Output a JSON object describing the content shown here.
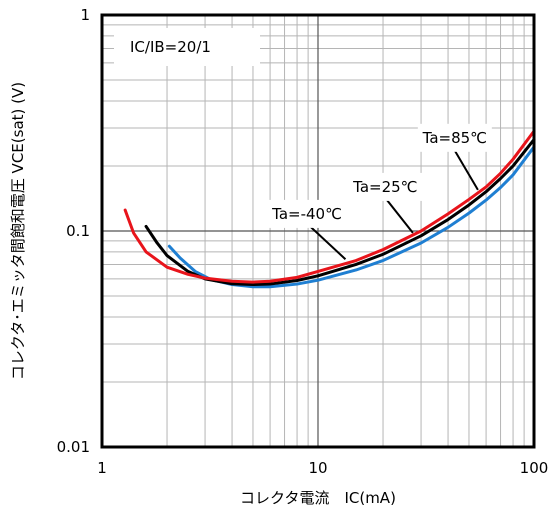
{
  "chart_data": {
    "type": "line",
    "xscale": "log",
    "yscale": "log",
    "xlim": [
      1,
      100
    ],
    "ylim": [
      0.01,
      1
    ],
    "x_ticks": [
      "1",
      "10",
      "100"
    ],
    "y_ticks": [
      "1",
      "0.1",
      "0.01"
    ],
    "xlabel": "コレクタ電流　IC(mA)",
    "ylabel": "コレクタ･エミッタ間飽和電圧 VCE(sat) (V)",
    "grid": true,
    "condition": "IC/IB=20/1",
    "series": [
      {
        "name": "Ta=85℃",
        "color": "#e8141b",
        "points": [
          [
            1.28,
            0.125
          ],
          [
            1.4,
            0.098
          ],
          [
            1.6,
            0.08
          ],
          [
            2.0,
            0.068
          ],
          [
            2.5,
            0.063
          ],
          [
            3.0,
            0.0605
          ],
          [
            4.0,
            0.0585
          ],
          [
            5.0,
            0.058
          ],
          [
            6.0,
            0.0585
          ],
          [
            8.0,
            0.061
          ],
          [
            10,
            0.065
          ],
          [
            15,
            0.073
          ],
          [
            20,
            0.082
          ],
          [
            30,
            0.1
          ],
          [
            40,
            0.12
          ],
          [
            50,
            0.14
          ],
          [
            60,
            0.16
          ],
          [
            70,
            0.185
          ],
          [
            80,
            0.215
          ],
          [
            100,
            0.29
          ]
        ]
      },
      {
        "name": "Ta=25℃",
        "color": "#000000",
        "points": [
          [
            1.6,
            0.105
          ],
          [
            1.8,
            0.088
          ],
          [
            2.0,
            0.077
          ],
          [
            2.5,
            0.065
          ],
          [
            3.0,
            0.06
          ],
          [
            4.0,
            0.057
          ],
          [
            5.0,
            0.0565
          ],
          [
            6.0,
            0.0568
          ],
          [
            8.0,
            0.059
          ],
          [
            10,
            0.062
          ],
          [
            15,
            0.07
          ],
          [
            20,
            0.078
          ],
          [
            30,
            0.095
          ],
          [
            40,
            0.113
          ],
          [
            50,
            0.132
          ],
          [
            60,
            0.152
          ],
          [
            70,
            0.175
          ],
          [
            80,
            0.2
          ],
          [
            100,
            0.265
          ]
        ]
      },
      {
        "name": "Ta=-40℃",
        "color": "#1f7fd2",
        "points": [
          [
            2.05,
            0.085
          ],
          [
            2.3,
            0.075
          ],
          [
            2.7,
            0.065
          ],
          [
            3.2,
            0.0595
          ],
          [
            4.0,
            0.0565
          ],
          [
            5.0,
            0.0552
          ],
          [
            6.0,
            0.0552
          ],
          [
            8.0,
            0.0568
          ],
          [
            10,
            0.0592
          ],
          [
            15,
            0.066
          ],
          [
            20,
            0.073
          ],
          [
            30,
            0.088
          ],
          [
            40,
            0.104
          ],
          [
            50,
            0.121
          ],
          [
            60,
            0.139
          ],
          [
            70,
            0.159
          ],
          [
            80,
            0.182
          ],
          [
            100,
            0.245
          ]
        ]
      }
    ],
    "annotations": [
      {
        "text": "Ta=85℃",
        "box_at": [
          43,
          0.27
        ],
        "arrow_to": [
          55,
          0.155
        ]
      },
      {
        "text": "Ta=25℃",
        "box_at": [
          20.5,
          0.16
        ],
        "arrow_to": [
          27.5,
          0.098
        ]
      },
      {
        "text": "Ta=-40℃",
        "box_at": [
          8.9,
          0.12
        ],
        "arrow_to": [
          13.4,
          0.074
        ]
      }
    ]
  }
}
